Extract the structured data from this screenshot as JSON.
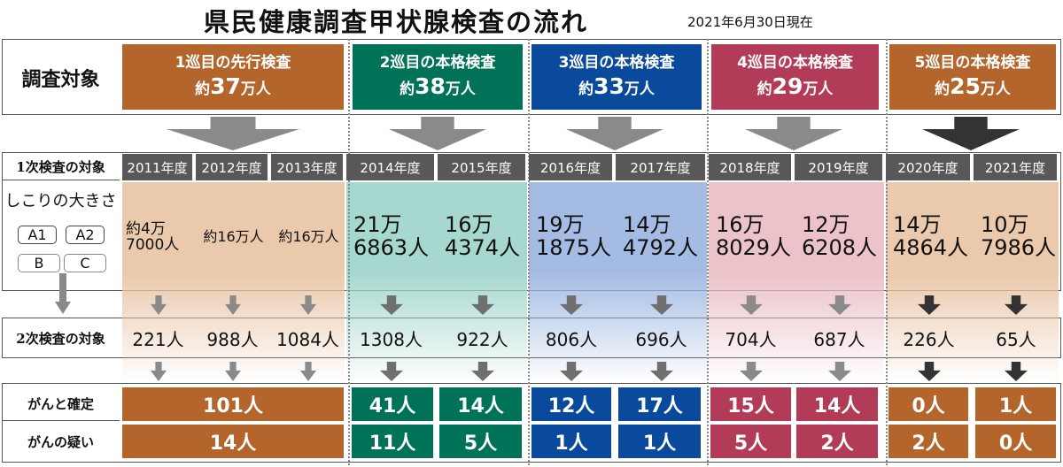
{
  "header": {
    "title": "県民健康調査甲状腺検査の流れ",
    "as_of": "2021年6月30日現在"
  },
  "row_labels": {
    "survey_target": "調査対象",
    "primary_target": "1次検査の対象",
    "nodule_size": "しこりの大きさ",
    "secondary_target": "2次検査の対象",
    "cancer_confirmed": "がんと確定",
    "cancer_suspected": "がんの疑い"
  },
  "size_grades": [
    "A1",
    "A2",
    "B",
    "C"
  ],
  "rounds": [
    {
      "name": "1巡目の先行検査",
      "count_prefix": "約",
      "count_value": "37",
      "count_suffix": "万人",
      "color": "#b4652b"
    },
    {
      "name": "2巡目の本格検査",
      "count_prefix": "約",
      "count_value": "38",
      "count_suffix": "万人",
      "color": "#007257"
    },
    {
      "name": "3巡目の本格検査",
      "count_prefix": "約",
      "count_value": "33",
      "count_suffix": "万人",
      "color": "#0a4a9c"
    },
    {
      "name": "4巡目の本格検査",
      "count_prefix": "約",
      "count_value": "29",
      "count_suffix": "万人",
      "color": "#b23b58"
    },
    {
      "name": "5巡目の本格検査",
      "count_prefix": "約",
      "count_value": "25",
      "count_suffix": "万人",
      "color": "#b4652b"
    }
  ],
  "years": [
    {
      "year": "2011年度",
      "primary": "約4万\n7000人",
      "secondary": "221人"
    },
    {
      "year": "2012年度",
      "primary": "約16万人",
      "secondary": "988人"
    },
    {
      "year": "2013年度",
      "primary": "約16万人",
      "secondary": "1084人"
    },
    {
      "year": "2014年度",
      "primary": "21万\n6863人",
      "secondary": "1308人"
    },
    {
      "year": "2015年度",
      "primary": "16万\n4374人",
      "secondary": "922人"
    },
    {
      "year": "2016年度",
      "primary": "19万\n1875人",
      "secondary": "806人"
    },
    {
      "year": "2017年度",
      "primary": "14万\n4792人",
      "secondary": "696人"
    },
    {
      "year": "2018年度",
      "primary": "16万\n8029人",
      "secondary": "704人"
    },
    {
      "year": "2019年度",
      "primary": "12万\n6208人",
      "secondary": "687人"
    },
    {
      "year": "2020年度",
      "primary": "14万\n4864人",
      "secondary": "226人"
    },
    {
      "year": "2021年度",
      "primary": "10万\n7986人",
      "secondary": "65人"
    }
  ],
  "results": {
    "confirmed": [
      "101人",
      "41人",
      "14人",
      "12人",
      "17人",
      "15人",
      "14人",
      "0人",
      "1人"
    ],
    "suspected": [
      "14人",
      "11人",
      "5人",
      "1人",
      "1人",
      "5人",
      "2人",
      "2人",
      "0人"
    ]
  }
}
